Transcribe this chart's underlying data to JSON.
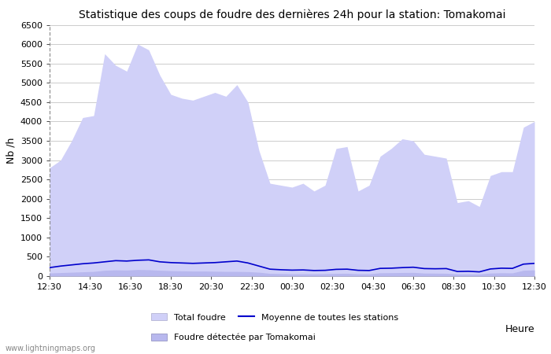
{
  "title": "Statistique des coups de foudre des dernières 24h pour la station: Tomakomai",
  "ylabel": "Nb /h",
  "xlabel": "Heure",
  "watermark": "www.lightningmaps.org",
  "ylim": [
    0,
    6500
  ],
  "yticks": [
    0,
    500,
    1000,
    1500,
    2000,
    2500,
    3000,
    3500,
    4000,
    4500,
    5000,
    5500,
    6000,
    6500
  ],
  "xtick_labels": [
    "12:30",
    "14:30",
    "16:30",
    "18:30",
    "20:30",
    "22:30",
    "00:30",
    "02:30",
    "04:30",
    "06:30",
    "08:30",
    "10:30",
    "12:30"
  ],
  "bg_color": "#ffffff",
  "plot_bg_color": "#ffffff",
  "grid_color": "#cccccc",
  "total_foudre_color": "#d0d0f8",
  "foudre_tomakomai_color": "#b8b8ee",
  "moyenne_color": "#0000cc",
  "legend_total_label": "Total foudre",
  "legend_moyenne_label": "Moyenne de toutes les stations",
  "legend_tomakomai_label": "Foudre détectée par Tomakomai",
  "total_foudre": [
    2800,
    3000,
    3500,
    4100,
    4150,
    5750,
    5450,
    5300,
    6000,
    5850,
    5200,
    4700,
    4600,
    4550,
    4650,
    4750,
    4650,
    4950,
    4500,
    3250,
    2400,
    2350,
    2300,
    2400,
    2200,
    2350,
    3300,
    3350,
    2200,
    2350,
    3100,
    3300,
    3550,
    3500,
    3150,
    3100,
    3050,
    1900,
    1950,
    1800,
    2600,
    2700,
    2700,
    3850,
    4000
  ],
  "foudre_tomakomai": [
    80,
    90,
    100,
    110,
    120,
    150,
    160,
    155,
    170,
    165,
    150,
    140,
    135,
    130,
    130,
    125,
    120,
    120,
    115,
    100,
    70,
    65,
    60,
    60,
    58,
    62,
    70,
    72,
    60,
    58,
    85,
    88,
    92,
    95,
    78,
    75,
    72,
    55,
    55,
    52,
    78,
    85,
    82,
    150,
    160
  ],
  "moyenne": [
    220,
    260,
    290,
    320,
    340,
    370,
    400,
    390,
    410,
    420,
    370,
    350,
    340,
    330,
    340,
    350,
    370,
    390,
    340,
    260,
    180,
    165,
    155,
    160,
    145,
    150,
    175,
    180,
    150,
    145,
    200,
    205,
    220,
    230,
    195,
    190,
    195,
    120,
    125,
    110,
    185,
    205,
    200,
    310,
    330
  ]
}
